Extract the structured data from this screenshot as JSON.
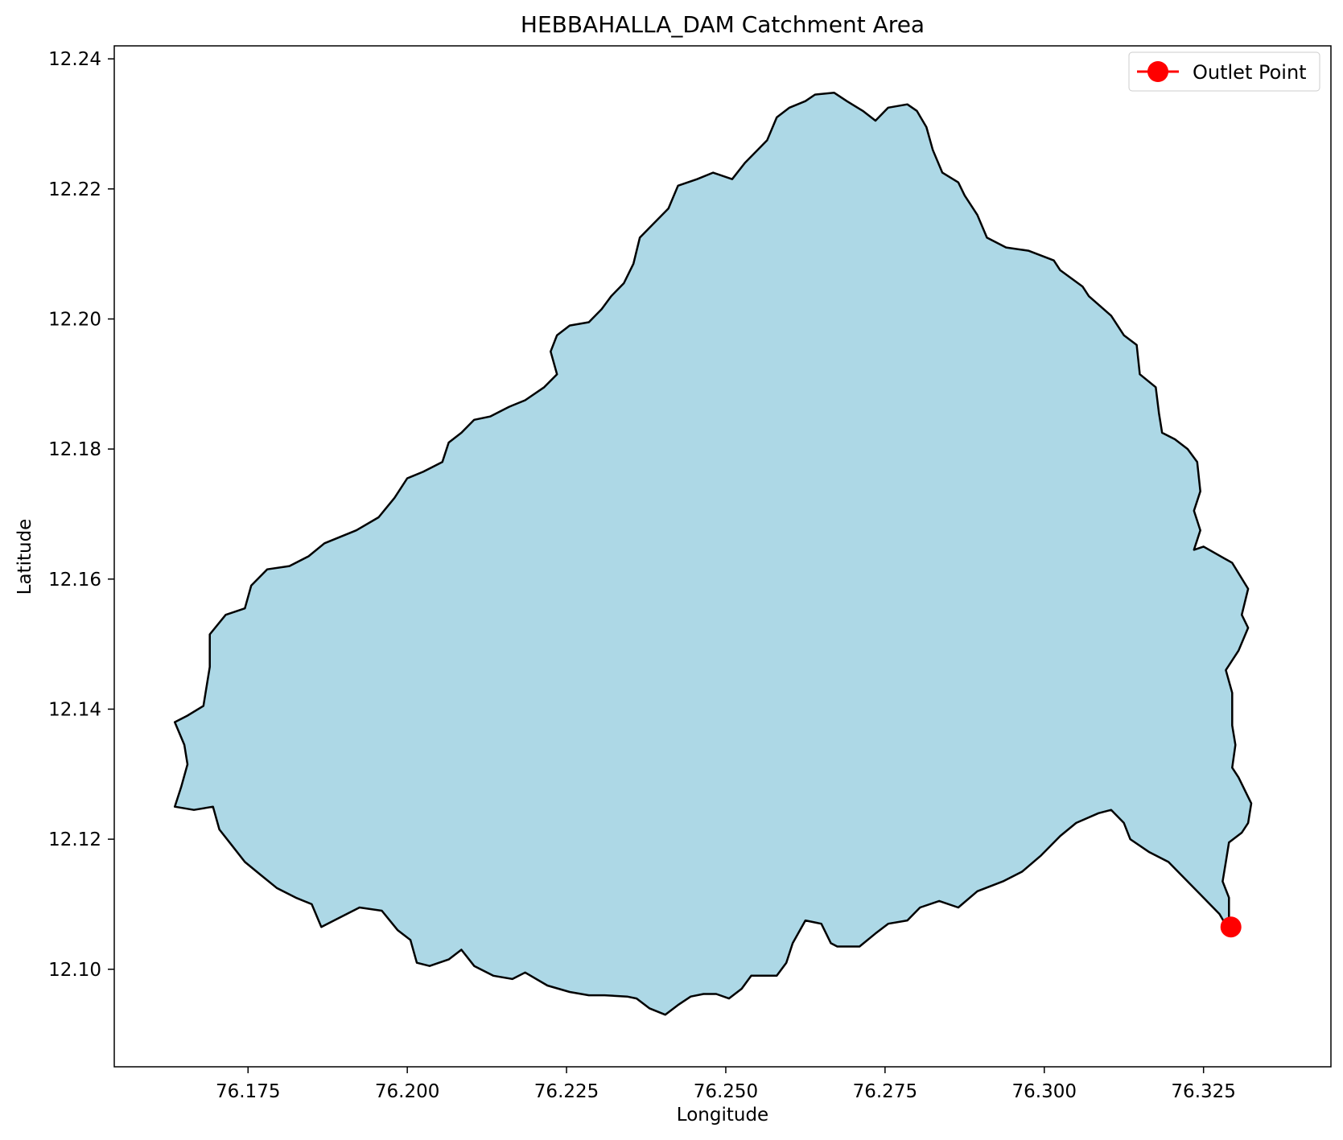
{
  "chart_data": {
    "type": "map",
    "title": "HEBBAHALLA_DAM Catchment Area",
    "xlabel": "Longitude",
    "ylabel": "Latitude",
    "xlim": [
      76.154,
      76.345
    ],
    "ylim": [
      12.085,
      12.242
    ],
    "xticks": [
      76.175,
      76.2,
      76.225,
      76.25,
      76.275,
      76.3,
      76.325
    ],
    "xtick_labels": [
      "76.175",
      "76.200",
      "76.225",
      "76.250",
      "76.275",
      "76.300",
      "76.325"
    ],
    "yticks": [
      12.1,
      12.12,
      12.14,
      12.16,
      12.18,
      12.2,
      12.22,
      12.24
    ],
    "ytick_labels": [
      "12.10",
      "12.12",
      "12.14",
      "12.16",
      "12.18",
      "12.20",
      "12.22",
      "12.24"
    ],
    "catchment_fill": "#add8e6",
    "catchment_edge": "#000000",
    "catchment_boundary": [
      [
        76.329,
        12.106
      ],
      [
        76.329,
        12.111
      ],
      [
        76.328,
        12.1135
      ],
      [
        76.3285,
        12.1165
      ],
      [
        76.329,
        12.1195
      ],
      [
        76.331,
        12.121
      ],
      [
        76.332,
        12.1225
      ],
      [
        76.3325,
        12.1255
      ],
      [
        76.3305,
        12.1295
      ],
      [
        76.3295,
        12.131
      ],
      [
        76.33,
        12.1345
      ],
      [
        76.3295,
        12.1375
      ],
      [
        76.3295,
        12.1425
      ],
      [
        76.3285,
        12.146
      ],
      [
        76.3305,
        12.149
      ],
      [
        76.332,
        12.1525
      ],
      [
        76.331,
        12.1545
      ],
      [
        76.332,
        12.1585
      ],
      [
        76.3295,
        12.1625
      ],
      [
        76.325,
        12.165
      ],
      [
        76.3235,
        12.1645
      ],
      [
        76.3245,
        12.1675
      ],
      [
        76.3235,
        12.1705
      ],
      [
        76.3245,
        12.1735
      ],
      [
        76.324,
        12.178
      ],
      [
        76.3225,
        12.18
      ],
      [
        76.3205,
        12.1815
      ],
      [
        76.3185,
        12.1825
      ],
      [
        76.318,
        12.1855
      ],
      [
        76.3175,
        12.1895
      ],
      [
        76.315,
        12.1915
      ],
      [
        76.3145,
        12.196
      ],
      [
        76.3125,
        12.1975
      ],
      [
        76.3105,
        12.2005
      ],
      [
        76.307,
        12.2035
      ],
      [
        76.306,
        12.205
      ],
      [
        76.3025,
        12.2075
      ],
      [
        76.3015,
        12.209
      ],
      [
        76.2975,
        12.2105
      ],
      [
        76.294,
        12.211
      ],
      [
        76.291,
        12.2125
      ],
      [
        76.2895,
        12.216
      ],
      [
        76.2875,
        12.219
      ],
      [
        76.2865,
        12.221
      ],
      [
        76.284,
        12.2225
      ],
      [
        76.2825,
        12.226
      ],
      [
        76.2815,
        12.2295
      ],
      [
        76.28,
        12.232
      ],
      [
        76.2785,
        12.233
      ],
      [
        76.2755,
        12.2325
      ],
      [
        76.2735,
        12.2305
      ],
      [
        76.2715,
        12.232
      ],
      [
        76.269,
        12.2335
      ],
      [
        76.267,
        12.2348
      ],
      [
        76.264,
        12.2345
      ],
      [
        76.2625,
        12.2335
      ],
      [
        76.26,
        12.2325
      ],
      [
        76.258,
        12.231
      ],
      [
        76.2565,
        12.2275
      ],
      [
        76.2545,
        12.2255
      ],
      [
        76.253,
        12.224
      ],
      [
        76.251,
        12.2215
      ],
      [
        76.248,
        12.2225
      ],
      [
        76.2455,
        12.2215
      ],
      [
        76.2425,
        12.2205
      ],
      [
        76.241,
        12.217
      ],
      [
        76.2385,
        12.2145
      ],
      [
        76.2365,
        12.2125
      ],
      [
        76.2355,
        12.2085
      ],
      [
        76.234,
        12.2055
      ],
      [
        76.232,
        12.2035
      ],
      [
        76.2305,
        12.2015
      ],
      [
        76.2285,
        12.1995
      ],
      [
        76.2255,
        12.199
      ],
      [
        76.2235,
        12.1975
      ],
      [
        76.2225,
        12.195
      ],
      [
        76.2235,
        12.1915
      ],
      [
        76.2215,
        12.1895
      ],
      [
        76.2185,
        12.1875
      ],
      [
        76.216,
        12.1865
      ],
      [
        76.213,
        12.185
      ],
      [
        76.2105,
        12.1845
      ],
      [
        76.2085,
        12.1825
      ],
      [
        76.2065,
        12.181
      ],
      [
        76.2055,
        12.178
      ],
      [
        76.2025,
        12.1765
      ],
      [
        76.2,
        12.1755
      ],
      [
        76.198,
        12.1725
      ],
      [
        76.1955,
        12.1695
      ],
      [
        76.192,
        12.1675
      ],
      [
        76.187,
        12.1655
      ],
      [
        76.1845,
        12.1635
      ],
      [
        76.1815,
        12.162
      ],
      [
        76.178,
        12.1615
      ],
      [
        76.1755,
        12.159
      ],
      [
        76.1745,
        12.1555
      ],
      [
        76.1715,
        12.1545
      ],
      [
        76.169,
        12.1515
      ],
      [
        76.169,
        12.1465
      ],
      [
        76.168,
        12.1405
      ],
      [
        76.1655,
        12.139
      ],
      [
        76.1635,
        12.138
      ],
      [
        76.165,
        12.1345
      ],
      [
        76.1655,
        12.1315
      ],
      [
        76.1645,
        12.128
      ],
      [
        76.1635,
        12.125
      ],
      [
        76.1665,
        12.1245
      ],
      [
        76.1695,
        12.125
      ],
      [
        76.1705,
        12.1215
      ],
      [
        76.1725,
        12.119
      ],
      [
        76.1745,
        12.1165
      ],
      [
        76.177,
        12.1145
      ],
      [
        76.1795,
        12.1125
      ],
      [
        76.1825,
        12.111
      ],
      [
        76.185,
        12.11
      ],
      [
        76.1865,
        12.1065
      ],
      [
        76.1895,
        12.108
      ],
      [
        76.1925,
        12.1095
      ],
      [
        76.196,
        12.109
      ],
      [
        76.1985,
        12.106
      ],
      [
        76.2005,
        12.1045
      ],
      [
        76.2015,
        12.101
      ],
      [
        76.2035,
        12.1005
      ],
      [
        76.2065,
        12.1015
      ],
      [
        76.2085,
        12.103
      ],
      [
        76.2105,
        12.1005
      ],
      [
        76.2135,
        12.099
      ],
      [
        76.2165,
        12.0985
      ],
      [
        76.2185,
        12.0995
      ],
      [
        76.222,
        12.0975
      ],
      [
        76.2255,
        12.0965
      ],
      [
        76.2285,
        12.096
      ],
      [
        76.231,
        12.096
      ],
      [
        76.2345,
        12.0958
      ],
      [
        76.236,
        12.0955
      ],
      [
        76.238,
        12.094
      ],
      [
        76.2405,
        12.093
      ],
      [
        76.2425,
        12.0945
      ],
      [
        76.2445,
        12.0958
      ],
      [
        76.2465,
        12.0962
      ],
      [
        76.2485,
        12.0962
      ],
      [
        76.2505,
        12.0955
      ],
      [
        76.2525,
        12.097
      ],
      [
        76.254,
        12.099
      ],
      [
        76.258,
        12.099
      ],
      [
        76.2595,
        12.101
      ],
      [
        76.2605,
        12.104
      ],
      [
        76.2625,
        12.1075
      ],
      [
        76.265,
        12.107
      ],
      [
        76.2665,
        12.104
      ],
      [
        76.2675,
        12.1035
      ],
      [
        76.271,
        12.1035
      ],
      [
        76.2735,
        12.1055
      ],
      [
        76.2755,
        12.107
      ],
      [
        76.2785,
        12.1075
      ],
      [
        76.2805,
        12.1095
      ],
      [
        76.2835,
        12.1105
      ],
      [
        76.2865,
        12.1095
      ],
      [
        76.2895,
        12.112
      ],
      [
        76.2935,
        12.1135
      ],
      [
        76.2965,
        12.115
      ],
      [
        76.2995,
        12.1175
      ],
      [
        76.3025,
        12.1205
      ],
      [
        76.305,
        12.1225
      ],
      [
        76.3085,
        12.124
      ],
      [
        76.3105,
        12.1245
      ],
      [
        76.3125,
        12.1225
      ],
      [
        76.3135,
        12.12
      ],
      [
        76.3165,
        12.118
      ],
      [
        76.3195,
        12.1165
      ],
      [
        76.3215,
        12.1145
      ],
      [
        76.3245,
        12.1115
      ],
      [
        76.3275,
        12.1085
      ],
      [
        76.329,
        12.106
      ]
    ],
    "outlet_point": {
      "lon": 76.3293,
      "lat": 12.1065,
      "color": "#ff0000"
    },
    "legend": {
      "label": "Outlet Point",
      "position": "upper right"
    }
  }
}
